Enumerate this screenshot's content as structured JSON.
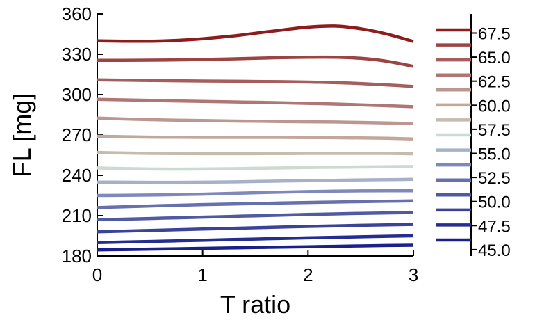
{
  "chart_data": {
    "type": "line",
    "xlabel": "T ratio",
    "ylabel": "FL [mg]",
    "xlim": [
      0,
      3
    ],
    "ylim": [
      180,
      360
    ],
    "xticks": [
      "0",
      "1",
      "2",
      "3"
    ],
    "yticks": [
      "180",
      "210",
      "240",
      "270",
      "300",
      "330",
      "360"
    ],
    "x": [
      0,
      0.25,
      0.5,
      0.75,
      1,
      1.25,
      1.5,
      1.75,
      2,
      2.25,
      2.5,
      2.75,
      3
    ],
    "grid": false,
    "legend": {
      "placement": "right",
      "labels": [
        "67.5",
        "65.0",
        "62.5",
        "60.0",
        "57.5",
        "55.0",
        "52.5",
        "50.0",
        "47.5",
        "45.0"
      ]
    },
    "series": [
      {
        "color": "#1a1f8a",
        "values": [
          184.5,
          184.8,
          185.1,
          185.4,
          185.7,
          186.0,
          186.3,
          186.6,
          186.9,
          187.2,
          187.5,
          187.8,
          188.0
        ]
      },
      {
        "color": "#252d92",
        "values": [
          190.0,
          190.4,
          190.8,
          191.3,
          191.7,
          192.2,
          192.6,
          193.1,
          193.5,
          193.9,
          194.3,
          194.7,
          195.0
        ]
      },
      {
        "color": "#3a4398",
        "values": [
          198.0,
          198.5,
          199.0,
          199.5,
          200.0,
          200.5,
          201.0,
          201.5,
          202.0,
          202.4,
          202.8,
          203.1,
          203.5
        ]
      },
      {
        "color": "#4f5aa3",
        "values": [
          207.0,
          207.4,
          207.9,
          208.4,
          208.9,
          209.4,
          209.9,
          210.4,
          210.9,
          211.3,
          211.7,
          212.0,
          212.3
        ]
      },
      {
        "color": "#6570ad",
        "values": [
          216.0,
          216.6,
          217.2,
          217.7,
          218.2,
          218.6,
          219.0,
          219.4,
          219.8,
          220.1,
          220.4,
          220.7,
          221.0
        ]
      },
      {
        "color": "#7f88ba",
        "values": [
          225.0,
          225.1,
          225.3,
          225.6,
          226.0,
          226.5,
          227.0,
          227.5,
          227.9,
          228.2,
          228.4,
          228.5,
          228.5
        ]
      },
      {
        "color": "#a6b0c6",
        "values": [
          235.0,
          234.9,
          234.8,
          234.8,
          234.9,
          235.1,
          235.4,
          235.7,
          236.0,
          236.3,
          236.6,
          236.8,
          237.0
        ]
      },
      {
        "color": "#ccdbd2",
        "values": [
          245.5,
          245.0,
          244.7,
          244.6,
          244.7,
          244.9,
          245.2,
          245.5,
          245.8,
          246.0,
          246.2,
          246.4,
          246.5
        ]
      },
      {
        "color": "#c5bcae",
        "values": [
          257.0,
          256.6,
          256.3,
          256.2,
          256.1,
          256.1,
          256.1,
          256.2,
          256.3,
          256.3,
          256.3,
          256.3,
          256.0
        ]
      },
      {
        "color": "#c2a79a",
        "values": [
          269.0,
          268.7,
          268.4,
          268.3,
          268.2,
          268.2,
          268.2,
          268.2,
          268.1,
          268.0,
          267.8,
          267.5,
          267.0
        ]
      },
      {
        "color": "#bc9690",
        "values": [
          282.5,
          281.9,
          281.4,
          281.0,
          280.7,
          280.4,
          280.2,
          280.0,
          279.8,
          279.6,
          279.3,
          278.9,
          278.5
        ]
      },
      {
        "color": "#b07674",
        "values": [
          296.5,
          296.1,
          295.7,
          295.3,
          295.0,
          294.6,
          294.3,
          293.9,
          293.5,
          293.0,
          292.4,
          291.7,
          291.0
        ]
      },
      {
        "color": "#a65e5c",
        "values": [
          311.0,
          310.7,
          310.5,
          310.3,
          310.1,
          310.0,
          309.8,
          309.6,
          309.3,
          308.9,
          308.2,
          307.2,
          306.0
        ]
      },
      {
        "color": "#9c4443",
        "values": [
          325.5,
          325.5,
          325.6,
          325.8,
          326.1,
          326.5,
          327.0,
          327.5,
          327.8,
          327.8,
          327.0,
          324.8,
          321.0
        ]
      },
      {
        "color": "#8e1c1c",
        "values": [
          340.0,
          339.7,
          339.7,
          340.3,
          341.5,
          343.3,
          345.6,
          348.0,
          350.2,
          351.0,
          349.0,
          345.0,
          339.5
        ]
      }
    ],
    "colorbar": {
      "colors": [
        "#8e1c1c",
        "#9c4443",
        "#a65e5c",
        "#b07674",
        "#bc9690",
        "#c2a79a",
        "#c5bcae",
        "#ccdbd2",
        "#a6b0c6",
        "#7f88ba",
        "#6570ad",
        "#4f5aa3",
        "#3a4398",
        "#252d92",
        "#1a1f8a"
      ]
    }
  }
}
